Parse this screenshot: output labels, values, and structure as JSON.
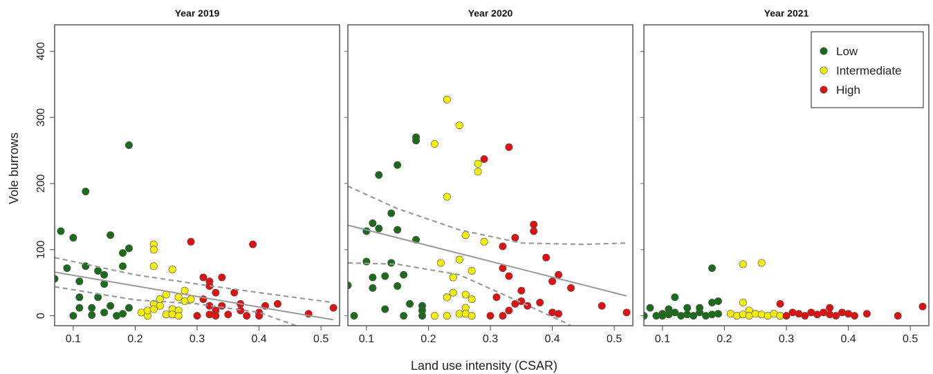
{
  "figure": {
    "ylabel": "Vole burrows",
    "xlabel": "Land use intensity (CSAR)"
  },
  "colors": {
    "Low": "#1a6b1a",
    "Intermediate": "#f5ef0a",
    "High": "#dd1111",
    "fit_line": "#999999"
  },
  "legend": {
    "position": "top-right of third panel",
    "entries": [
      "Low",
      "Intermediate",
      "High"
    ]
  },
  "chart_data": [
    {
      "type": "scatter",
      "title": "Year 2019",
      "xlim": [
        0.07,
        0.53
      ],
      "ylim": [
        -15,
        440
      ],
      "xticks": [
        0.1,
        0.2,
        0.3,
        0.4,
        0.5
      ],
      "yticks": [
        0,
        100,
        200,
        300,
        400
      ],
      "series": [
        {
          "name": "Low",
          "points": [
            [
              0.07,
              56
            ],
            [
              0.08,
              128
            ],
            [
              0.09,
              72
            ],
            [
              0.1,
              118
            ],
            [
              0.1,
              0
            ],
            [
              0.11,
              52
            ],
            [
              0.11,
              28
            ],
            [
              0.11,
              12
            ],
            [
              0.12,
              188
            ],
            [
              0.12,
              75
            ],
            [
              0.13,
              12
            ],
            [
              0.13,
              1
            ],
            [
              0.14,
              68
            ],
            [
              0.14,
              28
            ],
            [
              0.15,
              48
            ],
            [
              0.15,
              62
            ],
            [
              0.15,
              5
            ],
            [
              0.16,
              122
            ],
            [
              0.16,
              15
            ],
            [
              0.17,
              0
            ],
            [
              0.18,
              95
            ],
            [
              0.18,
              75
            ],
            [
              0.18,
              3
            ],
            [
              0.19,
              258
            ],
            [
              0.19,
              102
            ],
            [
              0.19,
              12
            ]
          ]
        },
        {
          "name": "Intermediate",
          "points": [
            [
              0.21,
              5
            ],
            [
              0.22,
              0
            ],
            [
              0.22,
              8
            ],
            [
              0.23,
              108
            ],
            [
              0.23,
              100
            ],
            [
              0.23,
              75
            ],
            [
              0.23,
              18
            ],
            [
              0.23,
              10
            ],
            [
              0.24,
              25
            ],
            [
              0.24,
              15
            ],
            [
              0.25,
              32
            ],
            [
              0.25,
              2
            ],
            [
              0.26,
              70
            ],
            [
              0.26,
              10
            ],
            [
              0.26,
              2
            ],
            [
              0.27,
              8
            ],
            [
              0.27,
              0
            ],
            [
              0.27,
              28
            ],
            [
              0.28,
              38
            ],
            [
              0.28,
              22
            ],
            [
              0.29,
              25
            ]
          ]
        },
        {
          "name": "High",
          "points": [
            [
              0.29,
              112
            ],
            [
              0.3,
              0
            ],
            [
              0.31,
              58
            ],
            [
              0.31,
              25
            ],
            [
              0.32,
              52
            ],
            [
              0.32,
              45
            ],
            [
              0.32,
              15
            ],
            [
              0.32,
              2
            ],
            [
              0.33,
              35
            ],
            [
              0.33,
              8
            ],
            [
              0.33,
              0
            ],
            [
              0.34,
              58
            ],
            [
              0.34,
              15
            ],
            [
              0.35,
              2
            ],
            [
              0.36,
              35
            ],
            [
              0.37,
              18
            ],
            [
              0.37,
              8
            ],
            [
              0.38,
              0
            ],
            [
              0.39,
              108
            ],
            [
              0.4,
              5
            ],
            [
              0.4,
              0
            ],
            [
              0.41,
              15
            ],
            [
              0.43,
              18
            ],
            [
              0.48,
              3
            ],
            [
              0.52,
              12
            ]
          ]
        }
      ],
      "fit": {
        "x": [
          0.07,
          0.52
        ],
        "y": [
          66,
          -6
        ]
      },
      "ci_upper": {
        "x": [
          0.07,
          0.2,
          0.3,
          0.4,
          0.52
        ],
        "y": [
          88,
          62,
          48,
          35,
          20
        ]
      },
      "ci_lower": {
        "x": [
          0.07,
          0.2,
          0.3,
          0.4,
          0.46
        ],
        "y": [
          44,
          24,
          18,
          5,
          -15
        ]
      }
    },
    {
      "type": "scatter",
      "title": "Year 2020",
      "xlim": [
        0.07,
        0.53
      ],
      "ylim": [
        -15,
        440
      ],
      "xticks": [
        0.1,
        0.2,
        0.3,
        0.4,
        0.5
      ],
      "yticks": [
        0,
        100,
        200,
        300,
        400
      ],
      "series": [
        {
          "name": "Low",
          "points": [
            [
              0.07,
              46
            ],
            [
              0.08,
              0
            ],
            [
              0.1,
              82
            ],
            [
              0.1,
              128
            ],
            [
              0.11,
              140
            ],
            [
              0.11,
              58
            ],
            [
              0.11,
              42
            ],
            [
              0.12,
              213
            ],
            [
              0.12,
              132
            ],
            [
              0.13,
              60
            ],
            [
              0.13,
              10
            ],
            [
              0.14,
              155
            ],
            [
              0.14,
              80
            ],
            [
              0.15,
              228
            ],
            [
              0.15,
              130
            ],
            [
              0.15,
              45
            ],
            [
              0.16,
              62
            ],
            [
              0.16,
              0
            ],
            [
              0.17,
              18
            ],
            [
              0.18,
              270
            ],
            [
              0.18,
              265
            ],
            [
              0.18,
              115
            ],
            [
              0.19,
              15
            ],
            [
              0.19,
              8
            ],
            [
              0.19,
              0
            ]
          ]
        },
        {
          "name": "Intermediate",
          "points": [
            [
              0.21,
              260
            ],
            [
              0.21,
              0
            ],
            [
              0.22,
              80
            ],
            [
              0.23,
              327
            ],
            [
              0.23,
              180
            ],
            [
              0.23,
              28
            ],
            [
              0.23,
              0
            ],
            [
              0.24,
              58
            ],
            [
              0.24,
              35
            ],
            [
              0.25,
              288
            ],
            [
              0.25,
              85
            ],
            [
              0.25,
              3
            ],
            [
              0.26,
              122
            ],
            [
              0.26,
              32
            ],
            [
              0.26,
              12
            ],
            [
              0.26,
              3
            ],
            [
              0.27,
              68
            ],
            [
              0.27,
              25
            ],
            [
              0.27,
              0
            ],
            [
              0.28,
              230
            ],
            [
              0.28,
              218
            ],
            [
              0.29,
              112
            ]
          ]
        },
        {
          "name": "High",
          "points": [
            [
              0.29,
              237
            ],
            [
              0.3,
              0
            ],
            [
              0.31,
              28
            ],
            [
              0.32,
              105
            ],
            [
              0.32,
              72
            ],
            [
              0.32,
              0
            ],
            [
              0.33,
              255
            ],
            [
              0.33,
              60
            ],
            [
              0.33,
              8
            ],
            [
              0.34,
              118
            ],
            [
              0.34,
              18
            ],
            [
              0.35,
              38
            ],
            [
              0.35,
              22
            ],
            [
              0.36,
              15
            ],
            [
              0.37,
              138
            ],
            [
              0.37,
              128
            ],
            [
              0.38,
              20
            ],
            [
              0.39,
              88
            ],
            [
              0.4,
              52
            ],
            [
              0.4,
              5
            ],
            [
              0.41,
              62
            ],
            [
              0.41,
              3
            ],
            [
              0.43,
              42
            ],
            [
              0.48,
              15
            ],
            [
              0.52,
              5
            ]
          ]
        }
      ],
      "fit": {
        "x": [
          0.07,
          0.52
        ],
        "y": [
          137,
          30
        ]
      },
      "ci_upper": {
        "x": [
          0.07,
          0.15,
          0.25,
          0.35,
          0.45,
          0.52
        ],
        "y": [
          196,
          162,
          130,
          110,
          108,
          110
        ]
      },
      "ci_lower": {
        "x": [
          0.07,
          0.15,
          0.25,
          0.35,
          0.42,
          0.45
        ],
        "y": [
          80,
          78,
          62,
          20,
          -10,
          -25
        ]
      }
    },
    {
      "type": "scatter",
      "title": "Year 2021",
      "xlim": [
        0.07,
        0.53
      ],
      "ylim": [
        -15,
        440
      ],
      "xticks": [
        0.1,
        0.2,
        0.3,
        0.4,
        0.5
      ],
      "yticks": [
        0,
        100,
        200,
        300,
        400
      ],
      "series": [
        {
          "name": "Low",
          "points": [
            [
              0.07,
              0
            ],
            [
              0.08,
              12
            ],
            [
              0.09,
              0
            ],
            [
              0.1,
              3
            ],
            [
              0.1,
              0
            ],
            [
              0.11,
              10
            ],
            [
              0.11,
              2
            ],
            [
              0.12,
              28
            ],
            [
              0.12,
              5
            ],
            [
              0.13,
              0
            ],
            [
              0.14,
              12
            ],
            [
              0.14,
              2
            ],
            [
              0.15,
              0
            ],
            [
              0.16,
              5
            ],
            [
              0.16,
              12
            ],
            [
              0.17,
              0
            ],
            [
              0.18,
              72
            ],
            [
              0.18,
              20
            ],
            [
              0.18,
              2
            ],
            [
              0.19,
              22
            ],
            [
              0.19,
              3
            ]
          ]
        },
        {
          "name": "Intermediate",
          "points": [
            [
              0.21,
              3
            ],
            [
              0.22,
              0
            ],
            [
              0.23,
              78
            ],
            [
              0.23,
              20
            ],
            [
              0.23,
              2
            ],
            [
              0.24,
              8
            ],
            [
              0.24,
              0
            ],
            [
              0.25,
              3
            ],
            [
              0.26,
              80
            ],
            [
              0.26,
              2
            ],
            [
              0.27,
              0
            ],
            [
              0.28,
              3
            ],
            [
              0.29,
              0
            ]
          ]
        },
        {
          "name": "High",
          "points": [
            [
              0.29,
              18
            ],
            [
              0.3,
              0
            ],
            [
              0.31,
              5
            ],
            [
              0.32,
              3
            ],
            [
              0.33,
              0
            ],
            [
              0.34,
              5
            ],
            [
              0.35,
              2
            ],
            [
              0.36,
              5
            ],
            [
              0.37,
              12
            ],
            [
              0.37,
              2
            ],
            [
              0.38,
              0
            ],
            [
              0.39,
              5
            ],
            [
              0.4,
              3
            ],
            [
              0.41,
              0
            ],
            [
              0.43,
              3
            ],
            [
              0.48,
              0
            ],
            [
              0.52,
              14
            ]
          ]
        }
      ],
      "fit": null,
      "ci_upper": null,
      "ci_lower": null
    }
  ]
}
